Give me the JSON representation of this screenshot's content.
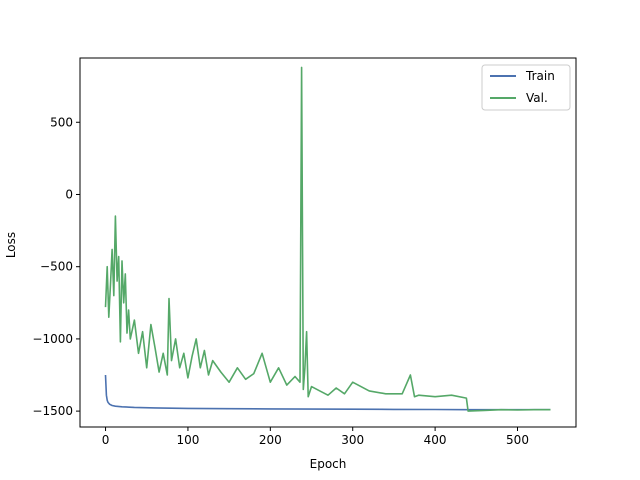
{
  "chart_data": {
    "type": "line",
    "title": "",
    "xlabel": "Epoch",
    "ylabel": "Loss",
    "xlim": [
      -31,
      571
    ],
    "ylim": [
      -1610,
      945
    ],
    "xticks": [
      0,
      100,
      200,
      300,
      400,
      500
    ],
    "xtick_labels": [
      "0",
      "100",
      "200",
      "300",
      "400",
      "500"
    ],
    "yticks": [
      -1500,
      -1000,
      -500,
      0,
      500
    ],
    "ytick_labels": [
      "−1500",
      "−1000",
      "−500",
      "0",
      "500"
    ],
    "grid": false,
    "legend_position": "top-right",
    "series": [
      {
        "name": "Train",
        "color": "#4c72b0",
        "x": [
          0,
          1,
          2,
          3,
          5,
          8,
          12,
          20,
          35,
          60,
          100,
          150,
          200,
          250,
          300,
          350,
          400,
          440,
          450,
          500,
          540
        ],
        "y": [
          -1250,
          -1390,
          -1425,
          -1440,
          -1453,
          -1461,
          -1466,
          -1470,
          -1474,
          -1478,
          -1481,
          -1483,
          -1485,
          -1486,
          -1487,
          -1488,
          -1489,
          -1490,
          -1490,
          -1490,
          -1490
        ]
      },
      {
        "name": "Val.",
        "color": "#55a868",
        "x": [
          0,
          2,
          4,
          6,
          8,
          10,
          12,
          14,
          16,
          18,
          20,
          22,
          24,
          26,
          28,
          30,
          35,
          40,
          45,
          50,
          55,
          60,
          65,
          70,
          75,
          77,
          80,
          85,
          90,
          95,
          100,
          105,
          110,
          115,
          120,
          125,
          130,
          140,
          150,
          160,
          170,
          180,
          190,
          200,
          210,
          220,
          230,
          236,
          238,
          240,
          242,
          244,
          246,
          250,
          260,
          270,
          280,
          290,
          300,
          320,
          340,
          360,
          370,
          375,
          380,
          400,
          420,
          438,
          440,
          460,
          480,
          500,
          520,
          540
        ],
        "y": [
          -780,
          -500,
          -850,
          -620,
          -380,
          -700,
          -150,
          -600,
          -430,
          -1020,
          -460,
          -750,
          -550,
          -960,
          -800,
          -1000,
          -870,
          -1100,
          -950,
          -1200,
          -900,
          -1060,
          -1230,
          -1100,
          -1250,
          -720,
          -1150,
          -1000,
          -1200,
          -1100,
          -1270,
          -1120,
          -1000,
          -1200,
          -1080,
          -1250,
          -1150,
          -1230,
          -1300,
          -1200,
          -1280,
          -1240,
          -1100,
          -1300,
          -1200,
          -1320,
          -1260,
          -1300,
          880,
          -1350,
          -1200,
          -950,
          -1400,
          -1330,
          -1360,
          -1390,
          -1340,
          -1380,
          -1300,
          -1360,
          -1380,
          -1380,
          -1250,
          -1400,
          -1390,
          -1400,
          -1390,
          -1410,
          -1500,
          -1495,
          -1490,
          -1492,
          -1490,
          -1490
        ]
      }
    ]
  }
}
